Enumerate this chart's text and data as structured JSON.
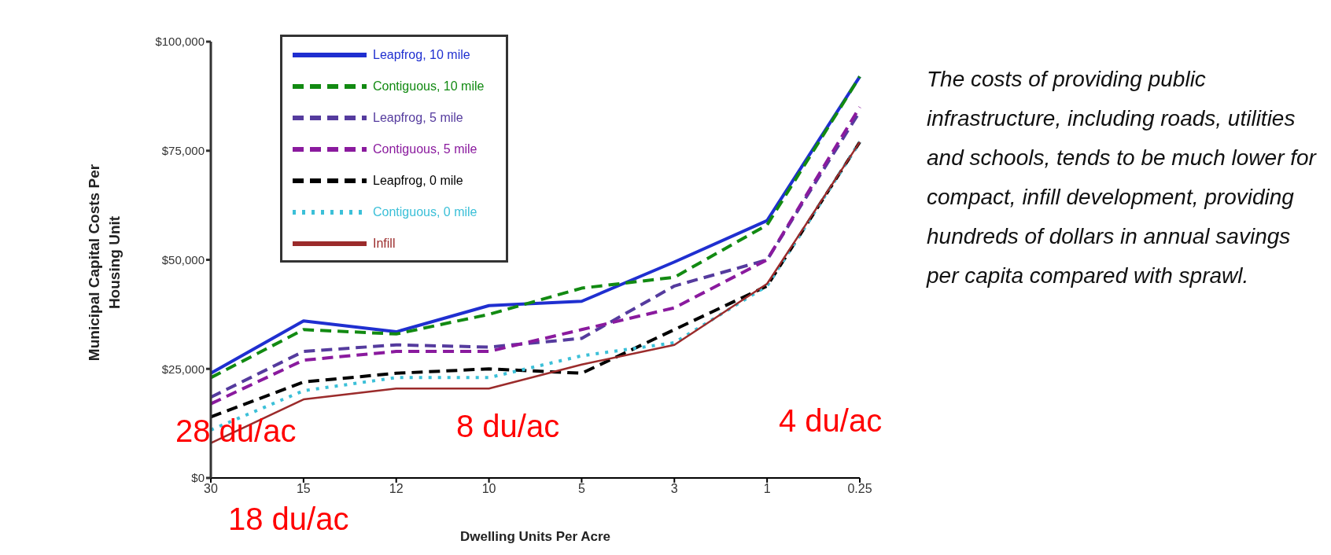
{
  "chart_data": {
    "type": "line",
    "xlabel": "Dwelling Units Per Acre",
    "ylabel": "Municipal Capital Costs Per Housing Unit",
    "categories": [
      "30",
      "15",
      "12",
      "10",
      "5",
      "3",
      "1",
      "0.25"
    ],
    "series": [
      {
        "name": "Leapfrog, 10 mile",
        "color": "#1f2fd0",
        "line_style": "solid",
        "values": [
          24000,
          36000,
          33500,
          39500,
          40500,
          49500,
          59000,
          92000
        ]
      },
      {
        "name": "Contiguous, 10 mile",
        "color": "#128a12",
        "line_style": "dashed",
        "values": [
          23000,
          34000,
          33000,
          37500,
          43500,
          46000,
          58000,
          92000
        ]
      },
      {
        "name": "Leapfrog, 5 mile",
        "color": "#553b9e",
        "line_style": "dashed",
        "values": [
          18500,
          29000,
          30500,
          30000,
          32000,
          44000,
          50000,
          84000
        ]
      },
      {
        "name": "Contiguous, 5 mile",
        "color": "#8a1a9e",
        "line_style": "dashed",
        "values": [
          17000,
          27000,
          29000,
          29000,
          34000,
          39000,
          50000,
          85000
        ]
      },
      {
        "name": "Leapfrog, 0 mile",
        "color": "#000000",
        "line_style": "dashed",
        "values": [
          14000,
          22000,
          24000,
          25000,
          24000,
          34000,
          44000,
          77000
        ]
      },
      {
        "name": "Contiguous, 0 mile",
        "color": "#3cc0d8",
        "line_style": "dotted",
        "values": [
          11000,
          20000,
          23000,
          23000,
          28000,
          31000,
          44000,
          77000
        ]
      },
      {
        "name": "Infill",
        "color": "#9b2b2b",
        "line_style": "solid",
        "values": [
          8000,
          18000,
          20500,
          20500,
          26000,
          30500,
          44500,
          77000
        ]
      }
    ],
    "ylim": [
      0,
      100000
    ],
    "yticks": [
      {
        "value": 0,
        "label": "$0"
      },
      {
        "value": 25000,
        "label": "$25,000"
      },
      {
        "value": 50000,
        "label": "$50,000"
      },
      {
        "value": 75000,
        "label": "$75,000"
      },
      {
        "value": 100000,
        "label": "$100,000"
      }
    ],
    "grid": false,
    "legend": "top left",
    "marker": "none",
    "annotations": [
      "28 du/ac",
      "8 du/ac",
      "4 du/ac",
      "18 du/ac",
      "The costs of providing public infrastructure, including roads, utilities and schools, tends to be much lower for compact, infill development, providing hundreds of dollars in annual savings per capita compared with sprawl."
    ]
  }
}
